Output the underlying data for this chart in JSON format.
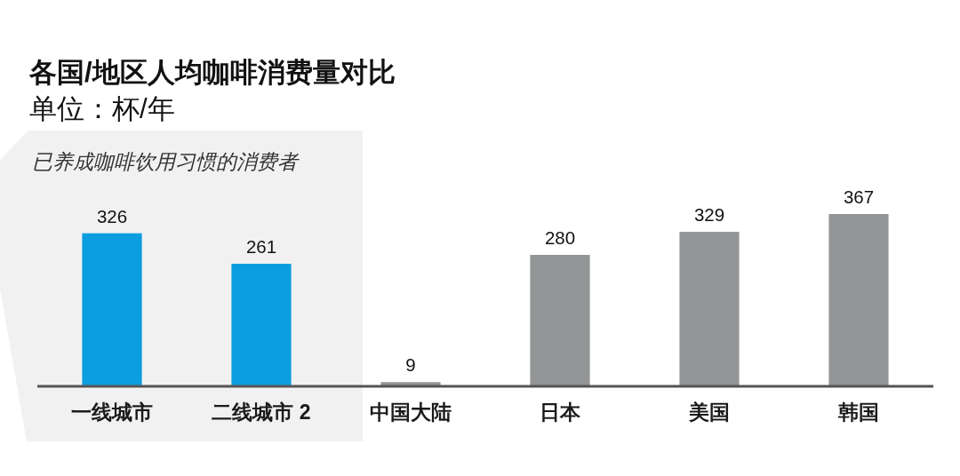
{
  "chart_data": {
    "type": "bar",
    "title": "各国/地区人均咖啡消费量对比",
    "subtitle": "单位：杯/年",
    "categories": [
      "一线城市",
      "二线城市 2",
      "中国大陆",
      "日本",
      "美国",
      "韩国"
    ],
    "values": [
      326,
      261,
      9,
      280,
      329,
      367
    ],
    "colors": [
      "#0a9ee0",
      "#0a9ee0",
      "#949597",
      "#949597",
      "#949597",
      "#949597"
    ],
    "data_labels": true,
    "bands": [
      {
        "axis": "x",
        "from": "一线城市",
        "to": "二线城市 2",
        "label": "已养成咖啡饮用习惯的消费者",
        "color": "#f1f1f1"
      }
    ]
  }
}
